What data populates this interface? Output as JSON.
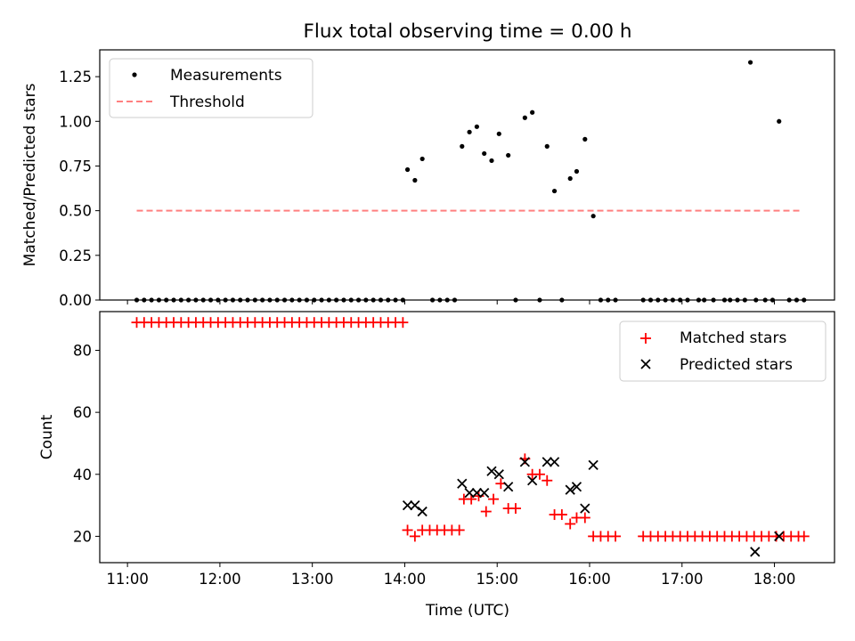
{
  "chart_data": [
    {
      "type": "scatter",
      "title": "Flux total observing time = 0.00 h",
      "xlabel": "",
      "ylabel": "Matched/Predicted stars",
      "xlim": [
        10.7,
        18.65
      ],
      "ylim": [
        0,
        1.4
      ],
      "yticks": [
        0,
        0.25,
        0.5,
        0.75,
        1.0,
        1.25
      ],
      "ytick_labels": [
        "0.00",
        "0.25",
        "0.50",
        "0.75",
        "1.00",
        "1.25"
      ],
      "legend_position": "top-left",
      "series": [
        {
          "name": "Measurements",
          "marker": "dot",
          "color": "#000000",
          "x": [
            11.1,
            11.18,
            11.26,
            11.34,
            11.42,
            11.5,
            11.58,
            11.66,
            11.74,
            11.82,
            11.9,
            11.98,
            12.06,
            12.14,
            12.22,
            12.3,
            12.38,
            12.46,
            12.54,
            12.62,
            12.7,
            12.78,
            12.86,
            12.94,
            13.02,
            13.1,
            13.18,
            13.26,
            13.34,
            13.42,
            13.5,
            13.58,
            13.66,
            13.74,
            13.82,
            13.9,
            13.98,
            14.03,
            14.11,
            14.19,
            14.3,
            14.38,
            14.46,
            14.54,
            14.62,
            14.7,
            14.78,
            14.86,
            14.94,
            15.02,
            15.12,
            15.2,
            15.3,
            15.38,
            15.46,
            15.54,
            15.62,
            15.7,
            15.79,
            15.86,
            15.95,
            16.04,
            16.12,
            16.2,
            16.28,
            16.58,
            16.66,
            16.74,
            16.82,
            16.9,
            16.98,
            17.06,
            17.18,
            17.24,
            17.34,
            17.46,
            17.52,
            17.6,
            17.68,
            17.74,
            17.8,
            17.9,
            17.98,
            18.05,
            18.16,
            18.24,
            18.32
          ],
          "y": [
            0,
            0,
            0,
            0,
            0,
            0,
            0,
            0,
            0,
            0,
            0,
            0,
            0,
            0,
            0,
            0,
            0,
            0,
            0,
            0,
            0,
            0,
            0,
            0,
            0,
            0,
            0,
            0,
            0,
            0,
            0,
            0,
            0,
            0,
            0,
            0,
            0,
            0.73,
            0.67,
            0.79,
            0,
            0,
            0,
            0,
            0.86,
            0.94,
            0.97,
            0.82,
            0.78,
            0.93,
            0.81,
            0,
            1.02,
            1.05,
            0,
            0.86,
            0.61,
            0,
            0.68,
            0.72,
            0.9,
            0.47,
            0,
            0,
            0,
            0,
            0,
            0,
            0,
            0,
            0,
            0,
            0,
            0,
            0,
            0,
            0,
            0,
            0,
            1.33,
            0,
            0,
            0,
            1.0,
            0,
            0,
            0
          ]
        },
        {
          "name": "Threshold",
          "line": "dashed",
          "color": "#ff8080",
          "x": [
            11.1,
            18.3
          ],
          "y": [
            0.5,
            0.5
          ]
        }
      ]
    },
    {
      "type": "scatter",
      "title": "",
      "xlabel": "Time (UTC)",
      "ylabel": "Count",
      "xlim": [
        10.7,
        18.65
      ],
      "ylim": [
        11.5,
        92.5
      ],
      "xticks": [
        11,
        12,
        13,
        14,
        15,
        16,
        17,
        18
      ],
      "xtick_labels": [
        "11:00",
        "12:00",
        "13:00",
        "14:00",
        "15:00",
        "16:00",
        "17:00",
        "18:00"
      ],
      "yticks": [
        20,
        40,
        60,
        80
      ],
      "ytick_labels": [
        "20",
        "40",
        "60",
        "80"
      ],
      "legend_position": "top-right",
      "series": [
        {
          "name": "Matched stars",
          "marker": "plus",
          "color": "#ff0000",
          "x": [
            11.1,
            11.18,
            11.26,
            11.34,
            11.42,
            11.5,
            11.58,
            11.66,
            11.74,
            11.82,
            11.9,
            11.98,
            12.06,
            12.14,
            12.22,
            12.3,
            12.38,
            12.46,
            12.54,
            12.62,
            12.7,
            12.78,
            12.86,
            12.94,
            13.02,
            13.1,
            13.18,
            13.26,
            13.34,
            13.42,
            13.5,
            13.58,
            13.66,
            13.74,
            13.82,
            13.9,
            13.98,
            14.03,
            14.11,
            14.19,
            14.27,
            14.35,
            14.43,
            14.51,
            14.59,
            14.64,
            14.72,
            14.8,
            14.88,
            14.96,
            15.04,
            15.12,
            15.2,
            15.3,
            15.38,
            15.46,
            15.54,
            15.62,
            15.7,
            15.79,
            15.86,
            15.95,
            16.04,
            16.12,
            16.2,
            16.28,
            16.58,
            16.66,
            16.74,
            16.82,
            16.9,
            16.98,
            17.06,
            17.14,
            17.22,
            17.3,
            17.38,
            17.46,
            17.54,
            17.62,
            17.7,
            17.78,
            17.86,
            17.94,
            18.02,
            18.1,
            18.18,
            18.26,
            18.32
          ],
          "y": [
            89,
            89,
            89,
            89,
            89,
            89,
            89,
            89,
            89,
            89,
            89,
            89,
            89,
            89,
            89,
            89,
            89,
            89,
            89,
            89,
            89,
            89,
            89,
            89,
            89,
            89,
            89,
            89,
            89,
            89,
            89,
            89,
            89,
            89,
            89,
            89,
            89,
            22,
            20,
            22,
            22,
            22,
            22,
            22,
            22,
            32,
            32,
            33,
            28,
            32,
            37,
            29,
            29,
            45,
            40,
            40,
            38,
            27,
            27,
            24,
            26,
            26,
            20,
            20,
            20,
            20,
            20,
            20,
            20,
            20,
            20,
            20,
            20,
            20,
            20,
            20,
            20,
            20,
            20,
            20,
            20,
            20,
            20,
            20,
            20,
            20,
            20,
            20,
            20
          ]
        },
        {
          "name": "Predicted stars",
          "marker": "x",
          "color": "#000000",
          "x": [
            14.03,
            14.11,
            14.19,
            14.62,
            14.7,
            14.78,
            14.86,
            14.94,
            15.02,
            15.12,
            15.3,
            15.38,
            15.54,
            15.62,
            15.79,
            15.86,
            15.95,
            16.04,
            17.79,
            18.05
          ],
          "y": [
            30,
            30,
            28,
            37,
            34,
            34,
            34,
            41,
            40,
            36,
            44,
            38,
            44,
            44,
            35,
            36,
            29,
            43,
            15,
            20
          ]
        }
      ]
    }
  ]
}
